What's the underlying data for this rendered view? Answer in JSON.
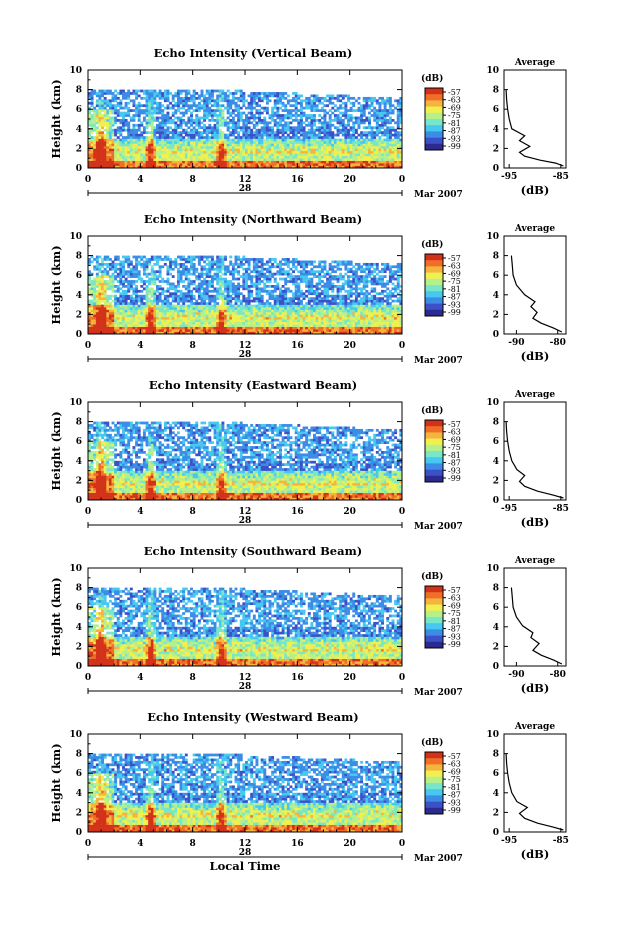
{
  "figure": {
    "xlabel": "Local Time",
    "date_day": "28",
    "date_month": "Mar 2007",
    "colorbar_unit": "(dB)",
    "colorbar_ticks": [
      "-57",
      "-63",
      "-69",
      "-75",
      "-81",
      "-87",
      "-93",
      "-99"
    ],
    "colors": [
      "#2a2a8f",
      "#3c50c8",
      "#3c8ce6",
      "#46c8f0",
      "#78e6c8",
      "#b4f08c",
      "#f0f050",
      "#f5b43c",
      "#f06e28",
      "#d23219"
    ]
  },
  "chart_data": [
    {
      "type": "heatmap",
      "title": "Echo Intensity (Vertical Beam)",
      "ylabel": "Height (km)",
      "x_ticks": [
        "0",
        "4",
        "8",
        "12",
        "16",
        "20",
        "0"
      ],
      "y_ticks": [
        "0",
        "2",
        "4",
        "6",
        "8",
        "10"
      ],
      "xlim": [
        0,
        24
      ],
      "ylim": [
        0,
        10
      ],
      "profile": {
        "title": "Average",
        "xlabel": "(dB)",
        "x_ticks": [
          "-95",
          "-85"
        ],
        "y_ticks": [
          "0",
          "2",
          "4",
          "6",
          "8",
          "10"
        ],
        "xlim": [
          -96,
          -84
        ],
        "ylim": [
          0,
          10
        ],
        "points": [
          [
            -84.5,
            0.2
          ],
          [
            -86,
            0.5
          ],
          [
            -89,
            0.8
          ],
          [
            -92,
            1.2
          ],
          [
            -93,
            1.6
          ],
          [
            -91,
            2.2
          ],
          [
            -93,
            2.8
          ],
          [
            -92,
            3.3
          ],
          [
            -94.5,
            4.0
          ],
          [
            -95,
            5.0
          ],
          [
            -95.3,
            6.0
          ],
          [
            -95.5,
            7.0
          ],
          [
            -95.6,
            8.0
          ]
        ]
      }
    },
    {
      "type": "heatmap",
      "title": "Echo Intensity (Northward Beam)",
      "ylabel": "Height (km)",
      "x_ticks": [
        "0",
        "4",
        "8",
        "12",
        "16",
        "20",
        "0"
      ],
      "y_ticks": [
        "0",
        "2",
        "4",
        "6",
        "8",
        "10"
      ],
      "xlim": [
        0,
        24
      ],
      "ylim": [
        0,
        10
      ],
      "profile": {
        "title": "Average",
        "xlabel": "(dB)",
        "x_ticks": [
          "-90",
          "-80"
        ],
        "y_ticks": [
          "0",
          "2",
          "4",
          "6",
          "8",
          "10"
        ],
        "xlim": [
          -93,
          -78
        ],
        "ylim": [
          0,
          10
        ],
        "points": [
          [
            -79,
            0.2
          ],
          [
            -81,
            0.6
          ],
          [
            -84,
            1.1
          ],
          [
            -86,
            1.6
          ],
          [
            -85,
            2.2
          ],
          [
            -86.5,
            2.8
          ],
          [
            -85.5,
            3.3
          ],
          [
            -88,
            4.0
          ],
          [
            -90,
            5.0
          ],
          [
            -90.8,
            6.0
          ],
          [
            -91,
            7.0
          ],
          [
            -91.2,
            8.0
          ]
        ]
      }
    },
    {
      "type": "heatmap",
      "title": "Echo Intensity (Eastward Beam)",
      "ylabel": "Height (km)",
      "x_ticks": [
        "0",
        "4",
        "8",
        "12",
        "16",
        "20",
        "0"
      ],
      "y_ticks": [
        "0",
        "2",
        "4",
        "6",
        "8",
        "10"
      ],
      "xlim": [
        0,
        24
      ],
      "ylim": [
        0,
        10
      ],
      "profile": {
        "title": "Average",
        "xlabel": "(dB)",
        "x_ticks": [
          "-95",
          "-85"
        ],
        "y_ticks": [
          "0",
          "2",
          "4",
          "6",
          "8",
          "10"
        ],
        "xlim": [
          -96,
          -84
        ],
        "ylim": [
          0,
          10
        ],
        "points": [
          [
            -84.5,
            0.2
          ],
          [
            -86.5,
            0.5
          ],
          [
            -89.5,
            0.9
          ],
          [
            -92,
            1.4
          ],
          [
            -93,
            1.9
          ],
          [
            -92,
            2.5
          ],
          [
            -93.5,
            3.1
          ],
          [
            -94.5,
            4.0
          ],
          [
            -95,
            5.0
          ],
          [
            -95.3,
            6.0
          ],
          [
            -95.5,
            7.0
          ],
          [
            -95.6,
            8.0
          ]
        ]
      }
    },
    {
      "type": "heatmap",
      "title": "Echo Intensity (Southward Beam)",
      "ylabel": "Height (km)",
      "x_ticks": [
        "0",
        "4",
        "8",
        "12",
        "16",
        "20",
        "0"
      ],
      "y_ticks": [
        "0",
        "2",
        "4",
        "6",
        "8",
        "10"
      ],
      "xlim": [
        0,
        24
      ],
      "ylim": [
        0,
        10
      ],
      "profile": {
        "title": "Average",
        "xlabel": "(dB)",
        "x_ticks": [
          "-90",
          "-80"
        ],
        "y_ticks": [
          "0",
          "2",
          "4",
          "6",
          "8",
          "10"
        ],
        "xlim": [
          -93,
          -78
        ],
        "ylim": [
          0,
          10
        ],
        "points": [
          [
            -79,
            0.2
          ],
          [
            -81,
            0.6
          ],
          [
            -84,
            1.1
          ],
          [
            -86,
            1.6
          ],
          [
            -84.5,
            2.3
          ],
          [
            -86.5,
            2.9
          ],
          [
            -86,
            3.4
          ],
          [
            -88.5,
            4.1
          ],
          [
            -90,
            5.0
          ],
          [
            -90.8,
            6.0
          ],
          [
            -91,
            7.0
          ],
          [
            -91.2,
            8.0
          ]
        ]
      }
    },
    {
      "type": "heatmap",
      "title": "Echo Intensity (Westward Beam)",
      "ylabel": "Height (km)",
      "x_ticks": [
        "0",
        "4",
        "8",
        "12",
        "16",
        "20",
        "0"
      ],
      "y_ticks": [
        "0",
        "2",
        "4",
        "6",
        "8",
        "10"
      ],
      "xlim": [
        0,
        24
      ],
      "ylim": [
        0,
        10
      ],
      "profile": {
        "title": "Average",
        "xlabel": "(dB)",
        "x_ticks": [
          "-95",
          "-85"
        ],
        "y_ticks": [
          "0",
          "2",
          "4",
          "6",
          "8",
          "10"
        ],
        "xlim": [
          -96,
          -84
        ],
        "ylim": [
          0,
          10
        ],
        "points": [
          [
            -84.5,
            0.2
          ],
          [
            -86.5,
            0.5
          ],
          [
            -89.5,
            0.9
          ],
          [
            -92,
            1.4
          ],
          [
            -93,
            1.9
          ],
          [
            -91.5,
            2.5
          ],
          [
            -93.5,
            3.1
          ],
          [
            -94.5,
            4.0
          ],
          [
            -95,
            5.0
          ],
          [
            -95.3,
            6.0
          ],
          [
            -95.5,
            7.0
          ],
          [
            -95.6,
            8.0
          ]
        ]
      }
    }
  ]
}
